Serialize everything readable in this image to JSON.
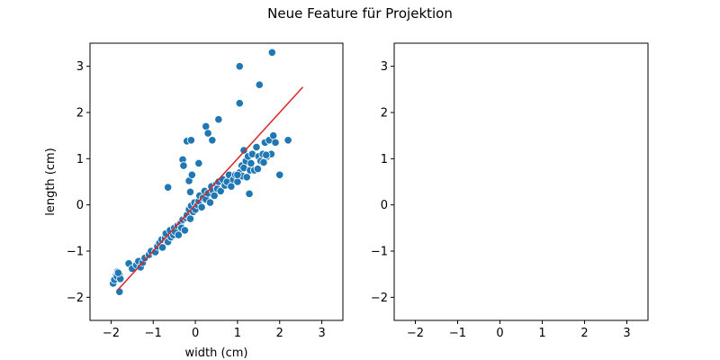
{
  "figure": {
    "suptitle": "Neue Feature für Projektion"
  },
  "chart_data": [
    {
      "type": "scatter",
      "title": "",
      "xlabel": "width (cm)",
      "ylabel": "length (cm)",
      "xlim": [
        -2.5,
        3.5
      ],
      "ylim": [
        -2.5,
        3.5
      ],
      "xticks": [
        -2,
        -1,
        0,
        1,
        2,
        3
      ],
      "yticks": [
        -2,
        -1,
        0,
        1,
        2,
        3
      ],
      "xtick_labels": [
        "−2",
        "−1",
        "0",
        "1",
        "2",
        "3"
      ],
      "ytick_labels": [
        "−2",
        "−1",
        "0",
        "1",
        "2",
        "3"
      ],
      "grid": false,
      "point_color": "#1f77b4",
      "line_color": "#d62728",
      "series": [
        {
          "values": [
            [
              -1.9,
              -1.6
            ],
            [
              -1.88,
              -1.52
            ],
            [
              -1.85,
              -1.45
            ],
            [
              -1.82,
              -1.58
            ],
            [
              -1.8,
              -1.5
            ],
            [
              -1.95,
              -1.7
            ],
            [
              -1.92,
              -1.62
            ],
            [
              -1.86,
              -1.55
            ],
            [
              -1.78,
              -1.6
            ],
            [
              -1.83,
              -1.47
            ],
            [
              -1.8,
              -1.88
            ],
            [
              -1.58,
              -1.27
            ],
            [
              -1.5,
              -1.38
            ],
            [
              -1.4,
              -1.3
            ],
            [
              -1.35,
              -1.22
            ],
            [
              -1.3,
              -1.35
            ],
            [
              -1.25,
              -1.25
            ],
            [
              -1.2,
              -1.15
            ],
            [
              -1.1,
              -1.08
            ],
            [
              -1.05,
              -1.0
            ],
            [
              -0.95,
              -1.02
            ],
            [
              -0.9,
              -0.9
            ],
            [
              -0.85,
              -0.82
            ],
            [
              -0.8,
              -0.75
            ],
            [
              -0.78,
              -0.92
            ],
            [
              -0.72,
              -0.72
            ],
            [
              -0.7,
              -0.62
            ],
            [
              -0.65,
              -0.8
            ],
            [
              -0.6,
              -0.55
            ],
            [
              -0.58,
              -0.7
            ],
            [
              -0.52,
              -0.65
            ],
            [
              -0.5,
              -0.5
            ],
            [
              -0.48,
              -0.58
            ],
            [
              -0.42,
              -0.45
            ],
            [
              -0.4,
              -0.65
            ],
            [
              -0.35,
              -0.4
            ],
            [
              -0.33,
              -0.5
            ],
            [
              -0.3,
              -0.32
            ],
            [
              -0.25,
              -0.55
            ],
            [
              -0.22,
              -0.28
            ],
            [
              -0.2,
              -0.22
            ],
            [
              -0.15,
              -0.1
            ],
            [
              -0.12,
              -0.3
            ],
            [
              -0.1,
              -0.02
            ],
            [
              -0.05,
              -0.15
            ],
            [
              -0.02,
              0.05
            ],
            [
              0.0,
              -0.1
            ],
            [
              0.05,
              0.0
            ],
            [
              0.08,
              0.08
            ],
            [
              0.1,
              0.2
            ],
            [
              0.15,
              -0.05
            ],
            [
              0.18,
              0.15
            ],
            [
              0.22,
              0.3
            ],
            [
              0.25,
              0.12
            ],
            [
              0.3,
              0.25
            ],
            [
              0.35,
              0.05
            ],
            [
              0.38,
              0.4
            ],
            [
              0.42,
              0.3
            ],
            [
              0.45,
              0.2
            ],
            [
              0.5,
              0.45
            ],
            [
              0.52,
              0.35
            ],
            [
              0.55,
              0.5
            ],
            [
              0.6,
              0.3
            ],
            [
              0.65,
              0.55
            ],
            [
              0.7,
              0.42
            ],
            [
              0.75,
              0.5
            ],
            [
              0.8,
              0.65
            ],
            [
              0.85,
              0.4
            ],
            [
              0.9,
              0.55
            ],
            [
              0.95,
              0.65
            ],
            [
              1.0,
              0.5
            ],
            [
              1.05,
              0.7
            ],
            [
              1.1,
              0.85
            ],
            [
              1.12,
              0.62
            ],
            [
              1.15,
              0.8
            ],
            [
              1.2,
              0.95
            ],
            [
              1.22,
              0.6
            ],
            [
              1.25,
              1.05
            ],
            [
              1.3,
              0.75
            ],
            [
              1.32,
              0.9
            ],
            [
              1.35,
              1.1
            ],
            [
              1.4,
              0.75
            ],
            [
              1.45,
              1.25
            ],
            [
              1.5,
              1.05
            ],
            [
              1.55,
              0.95
            ],
            [
              1.6,
              1.1
            ],
            [
              1.65,
              1.35
            ],
            [
              1.7,
              1.05
            ],
            [
              1.75,
              1.4
            ],
            [
              1.8,
              1.1
            ],
            [
              1.85,
              1.5
            ],
            [
              1.9,
              1.35
            ],
            [
              2.0,
              0.65
            ],
            [
              2.2,
              1.4
            ],
            [
              1.28,
              0.24
            ],
            [
              1.15,
              1.18
            ],
            [
              1.48,
              0.78
            ],
            [
              1.68,
              1.08
            ],
            [
              1.62,
              0.92
            ],
            [
              1.0,
              0.65
            ],
            [
              -0.65,
              0.38
            ],
            [
              -0.3,
              0.98
            ],
            [
              -0.28,
              0.85
            ],
            [
              -0.2,
              1.38
            ],
            [
              -0.15,
              0.52
            ],
            [
              -0.1,
              1.4
            ],
            [
              -0.12,
              0.28
            ],
            [
              -0.08,
              0.65
            ],
            [
              0.08,
              0.9
            ],
            [
              0.25,
              1.7
            ],
            [
              0.3,
              1.55
            ],
            [
              0.4,
              1.4
            ],
            [
              0.55,
              1.85
            ],
            [
              1.05,
              2.2
            ],
            [
              1.05,
              3.0
            ],
            [
              1.52,
              2.6
            ],
            [
              1.82,
              3.3
            ]
          ]
        }
      ],
      "fit_line": {
        "x": [
          -1.85,
          2.55
        ],
        "y": [
          -1.85,
          2.55
        ]
      }
    },
    {
      "type": "scatter",
      "title": "",
      "xlabel": "",
      "ylabel": "",
      "xlim": [
        -2.5,
        3.5
      ],
      "ylim": [
        -2.5,
        3.5
      ],
      "xticks": [
        -2,
        -1,
        0,
        1,
        2,
        3
      ],
      "yticks": [
        -2,
        -1,
        0,
        1,
        2,
        3
      ],
      "xtick_labels": [
        "−2",
        "−1",
        "0",
        "1",
        "2",
        "3"
      ],
      "ytick_labels": [
        "−2",
        "−1",
        "0",
        "1",
        "2",
        "3"
      ],
      "grid": false,
      "series": []
    }
  ]
}
